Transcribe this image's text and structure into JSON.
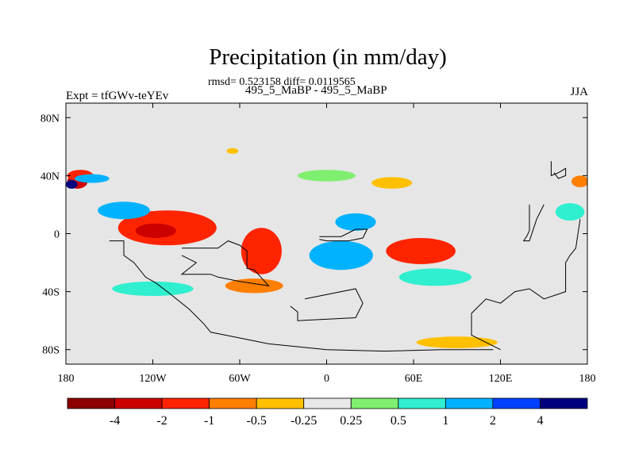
{
  "chart_data": {
    "type": "heatmap",
    "title": "Precipitation (in mm/day)",
    "stats_text": "rmsd= 0.523158 diff= 0.0119565",
    "case_text": "495_5_MaBP - 495_5_MaBP",
    "left_label": "Expt = tfGWv-teYEv",
    "right_label": "JJA",
    "xlim": [
      -180,
      180
    ],
    "ylim": [
      -90,
      90
    ],
    "x_ticks": [
      {
        "value": -180,
        "label": "180"
      },
      {
        "value": -120,
        "label": "120W"
      },
      {
        "value": -60,
        "label": "60W"
      },
      {
        "value": 0,
        "label": "0"
      },
      {
        "value": 60,
        "label": "60E"
      },
      {
        "value": 120,
        "label": "120E"
      },
      {
        "value": 180,
        "label": "180"
      }
    ],
    "y_ticks": [
      {
        "value": 80,
        "label": "80N"
      },
      {
        "value": 40,
        "label": "40N"
      },
      {
        "value": 0,
        "label": "0"
      },
      {
        "value": -40,
        "label": "40S"
      },
      {
        "value": -80,
        "label": "80S"
      }
    ],
    "colorbar": {
      "colors": [
        "#8b0000",
        "#cd0000",
        "#ff2400",
        "#ff7f00",
        "#ffc000",
        "#e8e8e8",
        "#7fef6f",
        "#2fefcf",
        "#00b2ff",
        "#0040ff",
        "#00007f"
      ],
      "labels": [
        {
          "edge": 1,
          "label": "-4"
        },
        {
          "edge": 2,
          "label": "-2"
        },
        {
          "edge": 3,
          "label": "-1"
        },
        {
          "edge": 4,
          "label": "-0.5"
        },
        {
          "edge": 5,
          "label": "-0.25"
        },
        {
          "edge": 6,
          "label": "0.25"
        },
        {
          "edge": 7,
          "label": "0.5"
        },
        {
          "edge": 8,
          "label": "1"
        },
        {
          "edge": 9,
          "label": "2"
        },
        {
          "edge": 10,
          "label": "4"
        }
      ]
    },
    "features": [
      {
        "desc": "NW edge wet band",
        "lon": -172,
        "lat": 36,
        "rx": 7,
        "ry": 5,
        "level": 1
      },
      {
        "desc": "NW edge wet band",
        "lon": -170,
        "lat": 40,
        "rx": 9,
        "ry": 4,
        "level": 2
      },
      {
        "desc": "NW edge dry",
        "lon": -162,
        "lat": 38,
        "rx": 12,
        "ry": 3,
        "level": 8
      },
      {
        "desc": "NW edge dry core",
        "lon": -176,
        "lat": 34,
        "rx": 4,
        "ry": 3,
        "level": 10
      },
      {
        "desc": "tropical E Pacific wet",
        "lon": -110,
        "lat": 4,
        "rx": 34,
        "ry": 12,
        "level": 2
      },
      {
        "desc": "tropical E Pacific core",
        "lon": -118,
        "lat": 2,
        "rx": 14,
        "ry": 5,
        "level": 1
      },
      {
        "desc": "dry belt N",
        "lon": -140,
        "lat": 16,
        "rx": 18,
        "ry": 6,
        "level": 8
      },
      {
        "desc": "S American wet",
        "lon": -45,
        "lat": -12,
        "rx": 14,
        "ry": 16,
        "level": 2
      },
      {
        "desc": "S Atlantic dry",
        "lon": 10,
        "lat": -15,
        "rx": 22,
        "ry": 10,
        "level": 8
      },
      {
        "desc": "Africa dry",
        "lon": 20,
        "lat": 8,
        "rx": 14,
        "ry": 6,
        "level": 8
      },
      {
        "desc": "Indian Ocean wet",
        "lon": 65,
        "lat": -12,
        "rx": 24,
        "ry": 9,
        "level": 2
      },
      {
        "desc": "Indian Ocean dry",
        "lon": 75,
        "lat": -30,
        "rx": 25,
        "ry": 6,
        "level": 7
      },
      {
        "desc": "S Indian wet",
        "lon": 90,
        "lat": -75,
        "rx": 28,
        "ry": 4,
        "level": 4
      },
      {
        "desc": "S Pacific wet",
        "lon": -50,
        "lat": -36,
        "rx": 20,
        "ry": 5,
        "level": 3
      },
      {
        "desc": "S Pacific dry",
        "lon": -120,
        "lat": -38,
        "rx": 28,
        "ry": 5,
        "level": 7
      },
      {
        "desc": "N mid-lat dry",
        "lon": 0,
        "lat": 40,
        "rx": 20,
        "ry": 4,
        "level": 6
      },
      {
        "desc": "N mid-lat wet",
        "lon": 45,
        "lat": 35,
        "rx": 14,
        "ry": 4,
        "level": 4
      },
      {
        "desc": "E edge wet",
        "lon": 175,
        "lat": 36,
        "rx": 6,
        "ry": 4,
        "level": 3
      },
      {
        "desc": "E edge dry",
        "lon": 168,
        "lat": 15,
        "rx": 10,
        "ry": 6,
        "level": 7
      },
      {
        "desc": "Arctic wet",
        "lon": -65,
        "lat": 57,
        "rx": 4,
        "ry": 2,
        "level": 4
      }
    ],
    "continent_outlines": [
      [
        [
          -150,
          -5
        ],
        [
          -140,
          -5
        ],
        [
          -140,
          -15
        ],
        [
          -133,
          -20
        ],
        [
          -125,
          -30
        ],
        [
          -118,
          -34
        ],
        [
          -110,
          -40
        ],
        [
          -95,
          -52
        ],
        [
          -85,
          -62
        ],
        [
          -80,
          -68
        ],
        [
          -70,
          -70
        ],
        [
          -40,
          -76
        ],
        [
          0,
          -80
        ],
        [
          40,
          -81
        ],
        [
          80,
          -80
        ],
        [
          115,
          -80
        ]
      ],
      [
        [
          -100,
          -10
        ],
        [
          -75,
          -10
        ],
        [
          -68,
          -5
        ],
        [
          -60,
          -8
        ],
        [
          -55,
          -12
        ],
        [
          -55,
          -24
        ],
        [
          -50,
          -25
        ],
        [
          -40,
          -36
        ],
        [
          -60,
          -33
        ],
        [
          -75,
          -30
        ],
        [
          -80,
          -28
        ],
        [
          -100,
          -28
        ],
        [
          -90,
          -20
        ],
        [
          -100,
          -15
        ]
      ],
      [
        [
          -5,
          -2
        ],
        [
          10,
          -2
        ],
        [
          20,
          3
        ],
        [
          28,
          3
        ],
        [
          25,
          -3
        ],
        [
          15,
          -5
        ],
        [
          0,
          -5
        ],
        [
          -5,
          -4
        ]
      ],
      [
        [
          -15,
          -45
        ],
        [
          20,
          -38
        ],
        [
          25,
          -48
        ],
        [
          20,
          -58
        ],
        [
          -20,
          -60
        ],
        [
          -20,
          -54
        ],
        [
          -25,
          -50
        ]
      ],
      [
        [
          140,
          20
        ],
        [
          140,
          2
        ],
        [
          138,
          -2
        ],
        [
          136,
          -5
        ],
        [
          140,
          -5
        ],
        [
          145,
          10
        ],
        [
          150,
          20
        ]
      ],
      [
        [
          155,
          50
        ],
        [
          155,
          40
        ],
        [
          160,
          42
        ],
        [
          165,
          45
        ],
        [
          165,
          40
        ],
        [
          160,
          38
        ],
        [
          157,
          42
        ]
      ],
      [
        [
          175,
          10
        ],
        [
          172,
          -10
        ],
        [
          168,
          -15
        ],
        [
          165,
          -20
        ],
        [
          165,
          -40
        ],
        [
          150,
          -45
        ],
        [
          140,
          -38
        ],
        [
          130,
          -40
        ],
        [
          120,
          -48
        ],
        [
          110,
          -45
        ],
        [
          100,
          -55
        ],
        [
          100,
          -70
        ],
        [
          120,
          -80
        ]
      ]
    ]
  }
}
